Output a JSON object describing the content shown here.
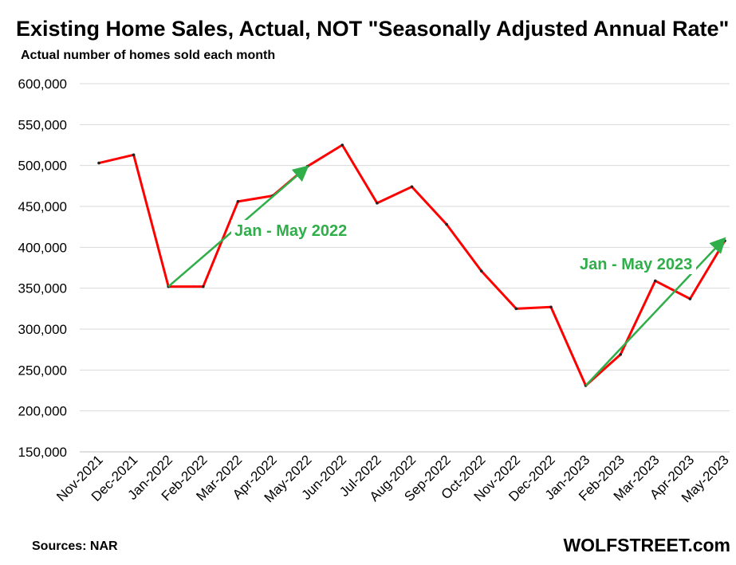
{
  "chart_data": {
    "type": "line",
    "title": "Existing Home Sales, Actual, NOT \"Seasonally Adjusted Annual Rate\"",
    "subtitle": "Actual number of homes sold each month",
    "categories": [
      "Nov-2021",
      "Dec-2021",
      "Jan-2022",
      "Feb-2022",
      "Mar-2022",
      "Apr-2022",
      "May-2022",
      "Jun-2022",
      "Jul-2022",
      "Aug-2022",
      "Sep-2022",
      "Oct-2022",
      "Nov-2022",
      "Dec-2022",
      "Jan-2023",
      "Feb-2023",
      "Mar-2023",
      "Apr-2023",
      "May-2023"
    ],
    "series": [
      {
        "values": [
          503000,
          513000,
          352000,
          352000,
          456000,
          463000,
          499000,
          525000,
          454000,
          474000,
          428000,
          371000,
          325000,
          327000,
          231000,
          269000,
          359000,
          337000,
          408000
        ],
        "color": "#ff0000"
      }
    ],
    "ylim": [
      150000,
      600000
    ],
    "yticks": [
      150000,
      200000,
      250000,
      300000,
      350000,
      400000,
      450000,
      500000,
      550000,
      600000
    ],
    "ytick_labels": [
      "150,000",
      "200,000",
      "250,000",
      "300,000",
      "350,000",
      "400,000",
      "450,000",
      "500,000",
      "550,000",
      "600,000"
    ],
    "grid": true,
    "annotations": [
      {
        "text": "Jan - May 2022",
        "from": [
          "Jan-2022",
          352000
        ],
        "to": [
          "May-2022",
          497000
        ],
        "color": "#2fae49"
      },
      {
        "text": "Jan - May 2023",
        "from": [
          "Jan-2023",
          231000
        ],
        "to": [
          "May-2023",
          409000
        ],
        "color": "#2fae49"
      }
    ]
  },
  "footer": {
    "source": "Sources: NAR",
    "brand": "WOLFSTREET.com"
  }
}
